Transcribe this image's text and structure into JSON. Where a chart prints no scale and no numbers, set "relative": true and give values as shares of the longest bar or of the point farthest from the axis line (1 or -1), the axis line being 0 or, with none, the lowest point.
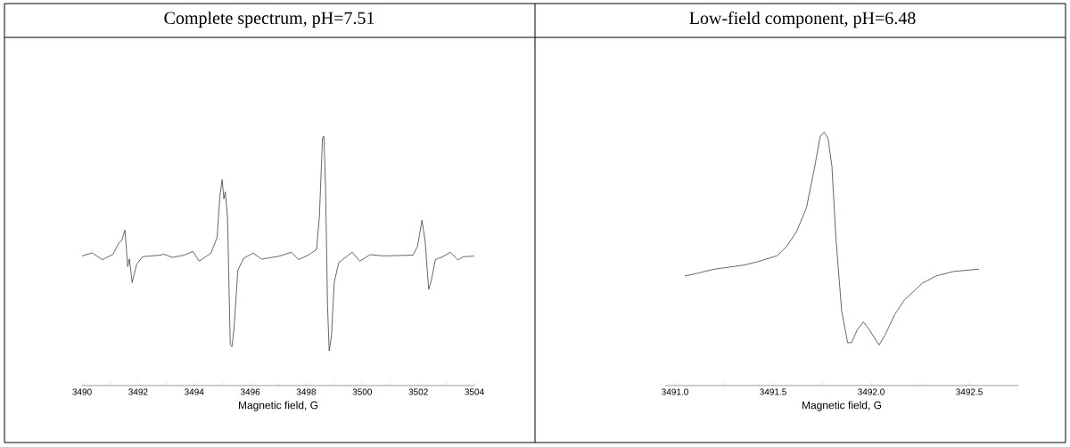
{
  "chart_data": [
    {
      "type": "line",
      "title": "Complete spectrum, pH=7.51",
      "xlabel": "Magnetic field, G",
      "relative": true,
      "tick_labels": "x",
      "color": "#404040",
      "xlim": [
        3490,
        3504
      ],
      "xticks": [
        3490,
        {
          "value": 3491,
          "label": null
        },
        3492,
        {
          "value": 3493,
          "label": null
        },
        3494,
        {
          "value": 3495,
          "label": null
        },
        3496,
        {
          "value": 3497,
          "label": null
        },
        3498,
        {
          "value": 3499,
          "label": null
        },
        3500,
        {
          "value": 3501,
          "label": null
        },
        3502,
        {
          "value": 3503,
          "label": null
        },
        3504
      ],
      "x": [
        3490.0,
        3490.36,
        3490.73,
        3491.1,
        3491.32,
        3491.42,
        3491.53,
        3491.63,
        3491.69,
        3491.79,
        3491.95,
        3492.16,
        3492.8,
        3492.91,
        3493.22,
        3493.65,
        3493.95,
        3494.18,
        3494.6,
        3494.82,
        3494.92,
        3495.0,
        3495.06,
        3495.11,
        3495.19,
        3495.29,
        3495.35,
        3495.42,
        3495.56,
        3495.77,
        3496.11,
        3496.41,
        3497.04,
        3497.47,
        3497.73,
        3498.1,
        3498.37,
        3498.47,
        3498.58,
        3498.63,
        3498.69,
        3498.76,
        3498.82,
        3498.9,
        3499.0,
        3499.16,
        3499.64,
        3499.91,
        3500.28,
        3500.75,
        3501.81,
        3501.97,
        3502.13,
        3502.24,
        3502.37,
        3502.45,
        3502.61,
        3502.88,
        3503.14,
        3503.41,
        3503.62,
        3503.99
      ],
      "values": [
        0.52,
        0.532,
        0.505,
        0.526,
        0.573,
        0.582,
        0.624,
        0.477,
        0.508,
        0.413,
        0.487,
        0.517,
        0.523,
        0.527,
        0.514,
        0.523,
        0.538,
        0.499,
        0.531,
        0.594,
        0.761,
        0.826,
        0.749,
        0.777,
        0.677,
        0.165,
        0.156,
        0.225,
        0.463,
        0.511,
        0.531,
        0.507,
        0.519,
        0.535,
        0.505,
        0.525,
        0.546,
        0.677,
        0.993,
        1.0,
        0.796,
        0.32,
        0.139,
        0.201,
        0.415,
        0.493,
        0.535,
        0.499,
        0.525,
        0.52,
        0.523,
        0.558,
        0.663,
        0.582,
        0.386,
        0.415,
        0.505,
        0.517,
        0.535,
        0.504,
        0.517,
        0.519
      ]
    },
    {
      "type": "line",
      "title": "Low-field component, pH=6.48",
      "xlabel": "Magnetic field, G",
      "relative": true,
      "tick_labels": "x",
      "color": "#404040",
      "xlim": [
        3490.95,
        3492.75
      ],
      "xticks": [
        {
          "value": 3491,
          "label": "3491.0"
        },
        {
          "value": 3491.25,
          "label": null
        },
        {
          "value": 3491.5,
          "label": "3491.5"
        },
        {
          "value": 3491.75,
          "label": null
        },
        {
          "value": 3492,
          "label": "3492.0"
        },
        {
          "value": 3492.25,
          "label": null
        },
        {
          "value": 3492.5,
          "label": "3492.5"
        }
      ],
      "x": [
        3491.05,
        3491.12,
        3491.2,
        3491.35,
        3491.42,
        3491.52,
        3491.57,
        3491.62,
        3491.67,
        3491.71,
        3491.74,
        3491.76,
        3491.78,
        3491.8,
        3491.82,
        3491.85,
        3491.88,
        3491.9,
        3491.93,
        3491.96,
        3491.99,
        3492.04,
        3492.07,
        3492.12,
        3492.17,
        3492.26,
        3492.33,
        3492.42,
        3492.55
      ],
      "values": [
        0.432,
        0.444,
        0.459,
        0.475,
        0.488,
        0.512,
        0.549,
        0.608,
        0.701,
        0.854,
        0.982,
        1.0,
        0.976,
        0.865,
        0.584,
        0.292,
        0.169,
        0.169,
        0.221,
        0.251,
        0.221,
        0.16,
        0.198,
        0.28,
        0.338,
        0.403,
        0.432,
        0.45,
        0.459
      ]
    }
  ]
}
